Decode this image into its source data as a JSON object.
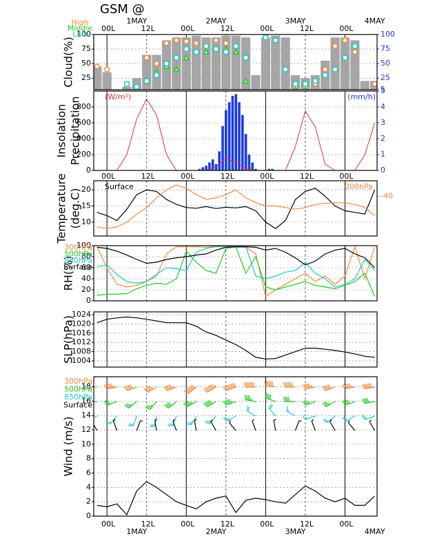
{
  "title": "GSM @",
  "time_axis": {
    "xlim": [
      -4,
      81.7
    ],
    "xticks": [
      {
        "value": 0,
        "label": "00L"
      },
      {
        "value": 12,
        "label": "12L"
      },
      {
        "value": 24,
        "label": "00L"
      },
      {
        "value": 36,
        "label": "12L"
      },
      {
        "value": 48,
        "label": "00L"
      },
      {
        "value": 60,
        "label": "12L"
      },
      {
        "value": 72,
        "label": "00L"
      }
    ],
    "dates": [
      {
        "value": 9,
        "label": "1MAY"
      },
      {
        "value": 33,
        "label": "2MAY"
      },
      {
        "value": 57,
        "label": "3MAY"
      },
      {
        "value": 81,
        "label": "4MAY"
      }
    ],
    "x": [
      -3,
      0,
      3,
      6,
      9,
      12,
      15,
      18,
      21,
      24,
      27,
      30,
      33,
      36,
      39,
      42,
      45,
      48,
      51,
      54,
      57,
      60,
      63,
      66,
      69,
      72,
      75,
      78,
      81
    ]
  },
  "chart_data": [
    {
      "type": "cloud",
      "y_label": [
        "Cloud(%)"
      ],
      "ylim": [
        5,
        100
      ],
      "yticks": [
        25,
        50,
        75,
        100
      ],
      "y2lim": [
        5,
        100
      ],
      "y2ticks": [
        5,
        25,
        50,
        75,
        100
      ],
      "y2color": "#2233dd",
      "bars": {
        "color": "#a6a6a6",
        "values": [
          45,
          35,
          0,
          10,
          25,
          65,
          65,
          90,
          95,
          95,
          98,
          95,
          95,
          98,
          98,
          95,
          30,
          95,
          98,
          95,
          30,
          25,
          30,
          55,
          95,
          95,
          90,
          20,
          20
        ]
      },
      "series": [
        {
          "name": "High",
          "color": "#f08a3c",
          "marker": "circle",
          "values": [
            45,
            40,
            0,
            0,
            10,
            60,
            50,
            85,
            90,
            88,
            85,
            80,
            90,
            85,
            80,
            60,
            0,
            0,
            0,
            40,
            10,
            10,
            15,
            40,
            80,
            90,
            70,
            0,
            15
          ]
        },
        {
          "name": "Middle",
          "color": "#22c822",
          "marker": "triangle",
          "values": [
            0,
            0,
            0,
            0,
            5,
            20,
            35,
            45,
            40,
            60,
            70,
            70,
            75,
            75,
            70,
            20,
            0,
            0,
            0,
            0,
            5,
            5,
            0,
            0,
            0,
            0,
            0,
            0,
            0
          ]
        },
        {
          "name": "Low",
          "color": "#20c8c8",
          "marker": "square",
          "values": [
            0,
            0,
            0,
            15,
            10,
            20,
            30,
            50,
            60,
            75,
            70,
            80,
            75,
            70,
            80,
            60,
            0,
            95,
            90,
            40,
            15,
            15,
            20,
            30,
            40,
            60,
            80,
            0,
            0
          ]
        }
      ]
    },
    {
      "type": "insolation",
      "y_label": [
        "Insolation",
        "Precipitation"
      ],
      "ylim": [
        0,
        1000
      ],
      "yticks": [
        0,
        200,
        400,
        600,
        800
      ],
      "y2lim": [
        0,
        5
      ],
      "y2ticks": [
        0,
        1,
        2,
        3,
        4,
        5
      ],
      "y2color": "#2233dd",
      "unit_label": "(W/m²)",
      "unit2_label": "(mm/h)",
      "insolation": {
        "color": "#e03030",
        "values": [
          0,
          0,
          0,
          200,
          650,
          900,
          700,
          200,
          0,
          0,
          0,
          0,
          50,
          150,
          100,
          20,
          0,
          0,
          0,
          0,
          300,
          750,
          550,
          80,
          0,
          0,
          0,
          200,
          600
        ]
      },
      "precipitation": {
        "color": "#1a3ae8",
        "axis": "y2",
        "x": [
          28,
          29,
          30,
          31,
          32,
          33,
          34,
          35,
          36,
          37,
          38,
          39,
          40,
          41,
          42,
          43,
          44,
          45,
          46,
          47,
          48,
          49,
          50
        ],
        "values": [
          0.1,
          0.2,
          0.3,
          0.5,
          0.7,
          0.4,
          1.2,
          2.8,
          3.8,
          4.3,
          4.7,
          4.8,
          4.3,
          3.5,
          2.3,
          1.0,
          0.5,
          0.1,
          0,
          0,
          0,
          0.1,
          0.1
        ]
      }
    },
    {
      "type": "line",
      "y_label": [
        "Temperature",
        "(deg.C)"
      ],
      "ylim": [
        5.7,
        22.8
      ],
      "yticks": [
        10,
        15,
        20
      ],
      "y2lim": [
        -52.3,
        -35.2
      ],
      "y2ticks": [
        -40
      ],
      "y2color": "#f08a3c",
      "series": [
        {
          "name": "Surface",
          "color": "#000000",
          "values": [
            13,
            12,
            10.5,
            14,
            18.5,
            20,
            19.5,
            17,
            15.5,
            14.5,
            14.3,
            14.8,
            14.2,
            14.6,
            14.4,
            14.8,
            13.5,
            10,
            8,
            10.5,
            17,
            19.5,
            20.5,
            18,
            15,
            13.5,
            13,
            12.5,
            20
          ]
        },
        {
          "name": "300hPa",
          "color": "#f08a3c",
          "axis": "y2",
          "values": [
            -49.5,
            -50,
            -49.5,
            -48,
            -45.5,
            -43.5,
            -40.5,
            -38,
            -36.5,
            -37.5,
            -39.5,
            -41,
            -40.5,
            -39.5,
            -38,
            -40.5,
            -42,
            -43,
            -43,
            -43.5,
            -44,
            -43.5,
            -42.5,
            -42.2,
            -42,
            -42,
            -42.5,
            -43.5,
            -46
          ]
        }
      ]
    },
    {
      "type": "line",
      "y_label": [
        "RH(%)"
      ],
      "ylim": [
        0,
        100
      ],
      "yticks": [
        0,
        20,
        40,
        60,
        80,
        100
      ],
      "legend": "left",
      "series": [
        {
          "name": "300hPa",
          "color": "#f08a3c",
          "values": [
            98,
            60,
            30,
            25,
            28,
            35,
            45,
            85,
            98,
            98,
            98,
            97,
            99,
            99,
            98,
            97,
            85,
            8,
            20,
            30,
            40,
            50,
            35,
            45,
            30,
            45,
            98,
            40,
            98
          ]
        },
        {
          "name": "500hPa",
          "color": "#22c822",
          "values": [
            10,
            12,
            12,
            13,
            22,
            28,
            32,
            30,
            40,
            90,
            70,
            55,
            50,
            95,
            98,
            50,
            80,
            25,
            20,
            25,
            30,
            35,
            28,
            25,
            22,
            28,
            35,
            50,
            8
          ]
        },
        {
          "name": "850hPa",
          "color": "#20c8c8",
          "values": [
            62,
            65,
            48,
            35,
            32,
            35,
            48,
            60,
            58,
            55,
            88,
            95,
            98,
            98,
            97,
            98,
            45,
            40,
            45,
            52,
            55,
            70,
            50,
            40,
            25,
            30,
            40,
            75,
            55
          ]
        },
        {
          "name": "Surface",
          "color": "#000000",
          "values": [
            97,
            95,
            90,
            83,
            75,
            68,
            70,
            75,
            78,
            80,
            83,
            85,
            92,
            97,
            98,
            98,
            97,
            92,
            95,
            88,
            78,
            65,
            72,
            85,
            92,
            95,
            85,
            78,
            60
          ]
        }
      ]
    },
    {
      "type": "line",
      "y_label": [
        "SLP(hPa)"
      ],
      "ylim": [
        1001.3,
        1025.2
      ],
      "yticks": [
        1004,
        1008,
        1012,
        1016,
        1020,
        1024
      ],
      "series": [
        {
          "color": "#000000",
          "values": [
            1020.5,
            1022,
            1022.6,
            1023,
            1022.6,
            1022,
            1021.3,
            1020.5,
            1020.5,
            1020.5,
            1019,
            1016.5,
            1015,
            1013,
            1011,
            1008.5,
            1005.5,
            1004.8,
            1005,
            1006.5,
            1008,
            1009.5,
            1009.5,
            1009,
            1008.5,
            1007.8,
            1007,
            1006,
            1005.5
          ]
        }
      ]
    },
    {
      "type": "wind",
      "y_label": [
        "Wind (m/s)"
      ],
      "ylim": [
        0,
        19.4
      ],
      "yticks": [
        0,
        2,
        4,
        6,
        8,
        10,
        12,
        14,
        16,
        18
      ],
      "series": [
        {
          "color": "#000000",
          "values": [
            1.5,
            1.3,
            1.7,
            0.2,
            3.5,
            4.8,
            4,
            3,
            2,
            1.5,
            1,
            2,
            2.5,
            2.8,
            0.5,
            2.2,
            2.5,
            2.3,
            2,
            1.8,
            3,
            4.2,
            3.5,
            2.5,
            2,
            2.5,
            1.5,
            1.5,
            2.8
          ]
        }
      ],
      "barbs": {
        "x": [
          -3,
          3,
          9,
          15,
          21,
          27,
          33,
          39,
          45,
          51,
          57,
          63,
          69,
          75,
          81
        ],
        "levels": [
          {
            "name": "300hPa",
            "color": "#f08a3c",
            "dir": [
              270,
              260,
              250,
              240,
              250,
              230,
              240,
              250,
              270,
              280,
              270,
              260,
              250,
              260,
              260
            ],
            "speed": [
              60,
              55,
              50,
              50,
              55,
              70,
              75,
              80,
              70,
              60,
              60,
              55,
              50,
              55,
              60
            ]
          },
          {
            "name": "500hPa",
            "color": "#22c822",
            "dir": [
              270,
              250,
              230,
              220,
              230,
              240,
              240,
              250,
              280,
              290,
              270,
              250,
              240,
              250,
              260
            ],
            "speed": [
              30,
              30,
              35,
              35,
              40,
              45,
              50,
              50,
              45,
              40,
              40,
              35,
              35,
              40,
              40
            ]
          },
          {
            "name": "850hPa",
            "color": "#20c8c8",
            "dir": [
              250,
              220,
              200,
              190,
              200,
              210,
              220,
              240,
              300,
              320,
              300,
              250,
              230,
              240,
              250
            ],
            "speed": [
              15,
              15,
              20,
              20,
              20,
              25,
              25,
              25,
              20,
              20,
              15,
              15,
              20,
              20,
              20
            ]
          },
          {
            "name": "Surface",
            "color": "#000000",
            "dir": [
              330,
              340,
              20,
              350,
              340,
              350,
              330,
              320,
              340,
              350,
              20,
              340,
              330,
              320,
              330
            ],
            "speed": [
              5,
              5,
              5,
              5,
              5,
              5,
              5,
              5,
              5,
              5,
              5,
              5,
              5,
              5,
              5
            ]
          }
        ]
      }
    }
  ]
}
